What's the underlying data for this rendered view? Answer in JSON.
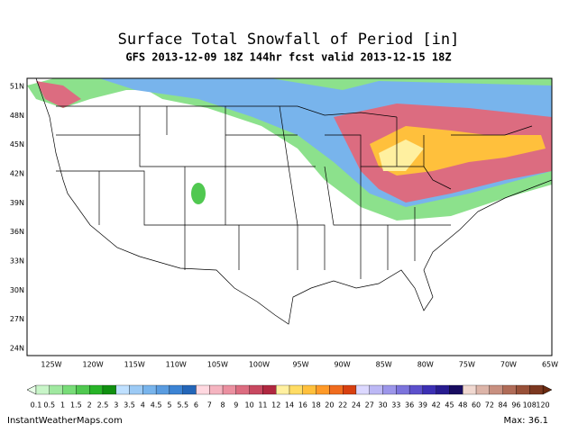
{
  "header": {
    "title": "Surface Total Snowfall of Period [in]",
    "subtitle": "GFS 2013-12-09 18Z 144hr fcst valid 2013-12-15 18Z"
  },
  "map": {
    "lat_labels": [
      "51N",
      "48N",
      "45N",
      "42N",
      "39N",
      "36N",
      "33N",
      "30N",
      "27N",
      "24N"
    ],
    "lon_labels": [
      "125W",
      "120W",
      "115W",
      "110W",
      "105W",
      "100W",
      "95W",
      "90W",
      "85W",
      "80W",
      "75W",
      "70W",
      "65W"
    ]
  },
  "colorbar": {
    "levels": [
      0.1,
      0.5,
      1,
      1.5,
      2,
      2.5,
      3,
      3.5,
      4,
      4.5,
      5,
      5.5,
      6,
      7,
      8,
      9,
      10,
      11,
      12,
      14,
      16,
      18,
      20,
      22,
      24,
      27,
      30,
      33,
      36,
      39,
      42,
      45,
      48,
      60,
      72,
      84,
      96,
      108,
      120
    ],
    "colors": [
      "#c8f5c8",
      "#a0e8a0",
      "#78dc78",
      "#50c850",
      "#28b428",
      "#109010",
      "#bfe0ff",
      "#9ccaf5",
      "#78b4ec",
      "#5a9ce0",
      "#3c84d4",
      "#2466b8",
      "#ffd8e0",
      "#f5b4c0",
      "#eb90a0",
      "#dc6c80",
      "#c84860",
      "#b02840",
      "#fff0a0",
      "#ffdc64",
      "#ffc03c",
      "#ff9a28",
      "#f06c1e",
      "#d84010",
      "#dcd8ff",
      "#bcb8f5",
      "#9c96ea",
      "#7c74dc",
      "#5c50cc",
      "#3c30b4",
      "#281c90",
      "#180c60",
      "#f0d8d0",
      "#dcb4a8",
      "#c89080",
      "#b06c58",
      "#985038",
      "#7c3820"
    ]
  },
  "footer": {
    "source": "InstantWeatherMaps.com",
    "max": "Max: 36.1"
  }
}
